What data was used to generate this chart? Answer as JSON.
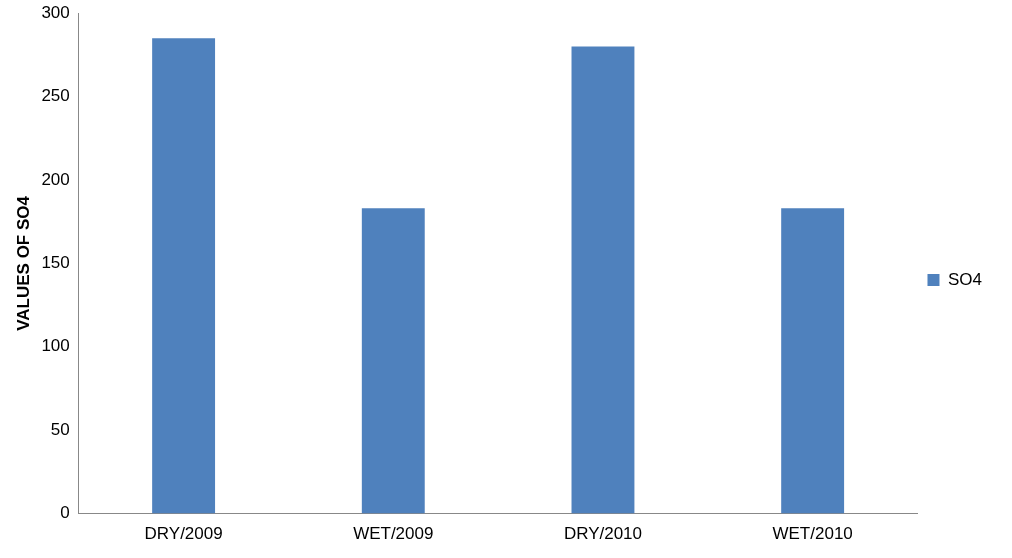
{
  "chart_data": {
    "type": "bar",
    "ylabel": "VALUES OF SO4",
    "categories": [
      "DRY/2009",
      "WET/2009",
      "DRY/2010",
      "WET/2010"
    ],
    "series": [
      {
        "name": "SO4",
        "color": "#4f81bd",
        "values": [
          285,
          183,
          280,
          183
        ]
      }
    ],
    "ylim": [
      0,
      300
    ],
    "yticks": [
      0,
      50,
      100,
      150,
      200,
      250,
      300
    ],
    "grid": false,
    "legend": "right"
  }
}
